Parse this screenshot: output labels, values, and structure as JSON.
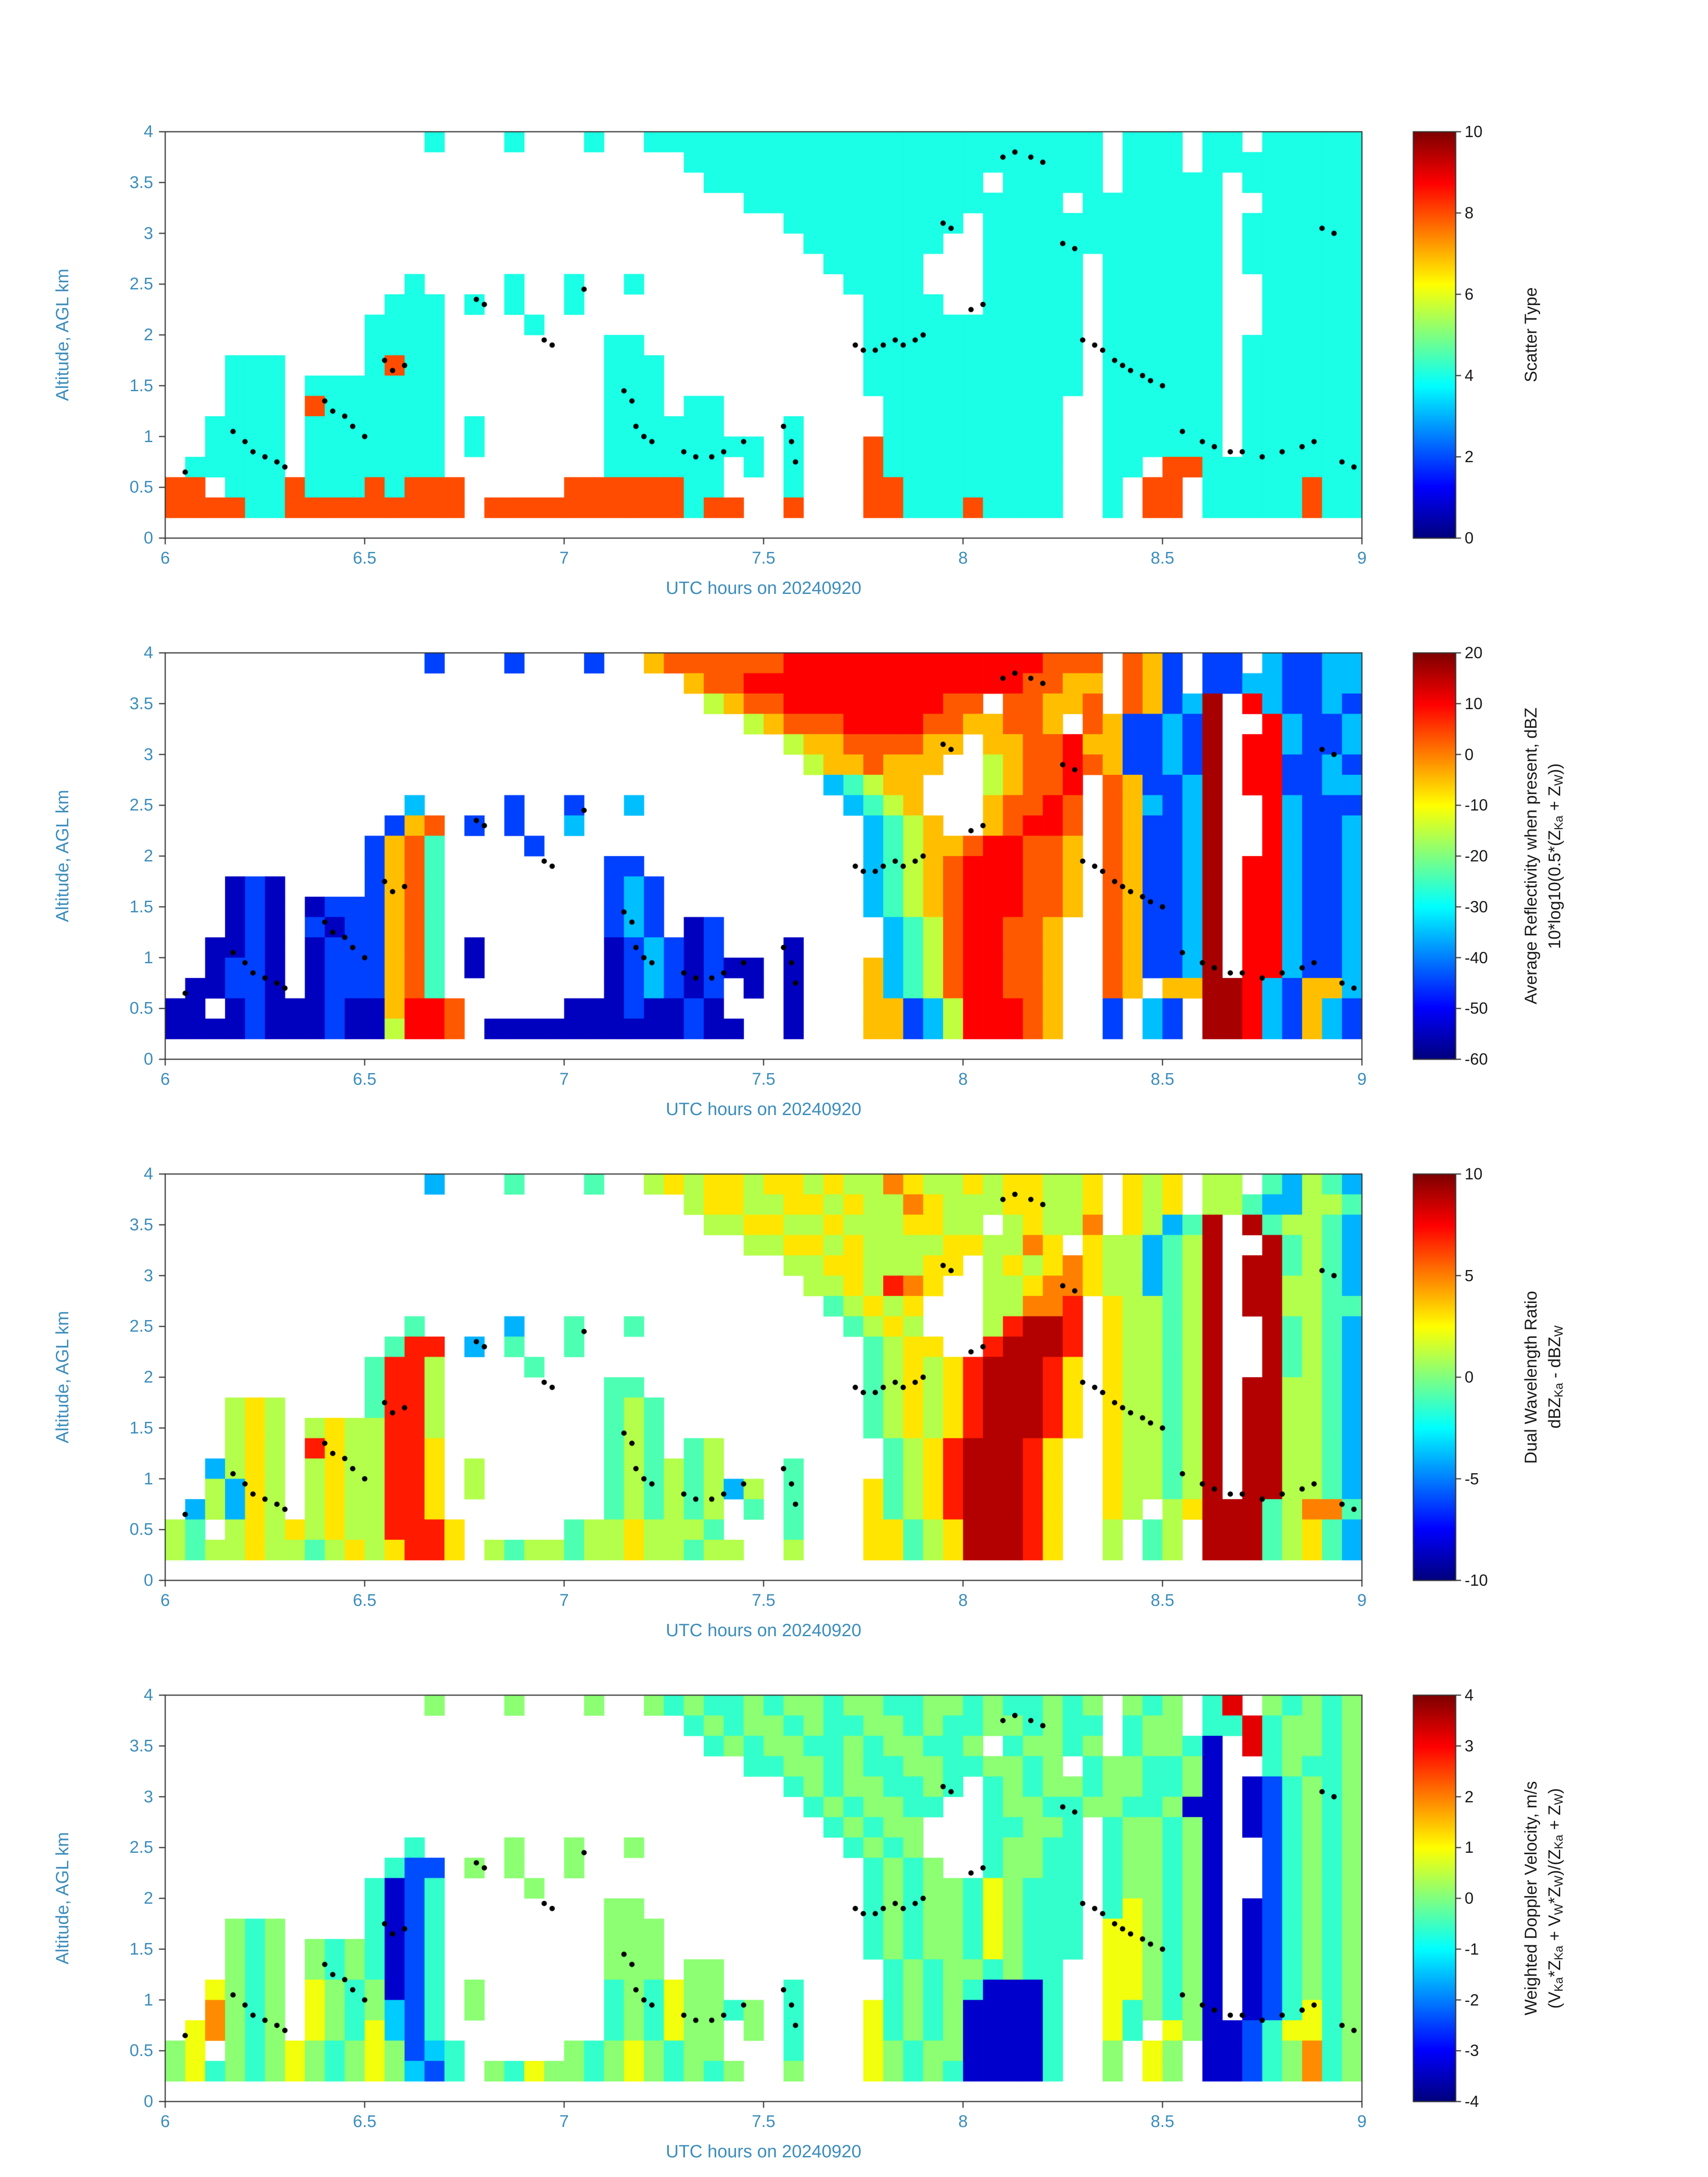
{
  "figure": {
    "background": "#ffffff",
    "axis_text_color": "#3c8dbc",
    "axis_line_color": "#333333",
    "colorbar_text_color": "#1a1a1a",
    "dot_color": "#000000"
  },
  "chart_data": {
    "type": "heatmap",
    "xlabel": "UTC hours on 20240920",
    "ylabel": "Altitude, AGL km",
    "x_range": [
      6,
      9
    ],
    "y_range": [
      0,
      4
    ],
    "x_ticks": {
      "values": [
        6,
        6.5,
        7,
        7.5,
        8,
        8.5,
        9
      ],
      "labels": [
        "6",
        "6.5",
        "7",
        "7.5",
        "8",
        "8.5",
        "9"
      ]
    },
    "y_ticks": {
      "values": [
        0,
        0.5,
        1,
        1.5,
        2,
        2.5,
        3,
        3.5,
        4
      ],
      "labels": [
        "0",
        "0.5",
        "1",
        "1.5",
        "2",
        "2.5",
        "3",
        "3.5",
        "4"
      ]
    },
    "grid": {
      "cols": 60,
      "rows": 20
    },
    "track_dots": [
      [
        6.05,
        0.65
      ],
      [
        6.17,
        1.05
      ],
      [
        6.2,
        0.95
      ],
      [
        6.22,
        0.85
      ],
      [
        6.25,
        0.8
      ],
      [
        6.28,
        0.75
      ],
      [
        6.3,
        0.7
      ],
      [
        6.4,
        1.35
      ],
      [
        6.42,
        1.25
      ],
      [
        6.45,
        1.2
      ],
      [
        6.47,
        1.1
      ],
      [
        6.5,
        1.0
      ],
      [
        6.55,
        1.75
      ],
      [
        6.57,
        1.65
      ],
      [
        6.6,
        1.7
      ],
      [
        6.78,
        2.35
      ],
      [
        6.8,
        2.3
      ],
      [
        6.95,
        1.95
      ],
      [
        6.97,
        1.9
      ],
      [
        7.05,
        2.45
      ],
      [
        7.15,
        1.45
      ],
      [
        7.17,
        1.35
      ],
      [
        7.18,
        1.1
      ],
      [
        7.2,
        1.0
      ],
      [
        7.22,
        0.95
      ],
      [
        7.3,
        0.85
      ],
      [
        7.33,
        0.8
      ],
      [
        7.37,
        0.8
      ],
      [
        7.4,
        0.85
      ],
      [
        7.45,
        0.95
      ],
      [
        7.55,
        1.1
      ],
      [
        7.57,
        0.95
      ],
      [
        7.58,
        0.75
      ],
      [
        7.73,
        1.9
      ],
      [
        7.75,
        1.85
      ],
      [
        7.78,
        1.85
      ],
      [
        7.8,
        1.9
      ],
      [
        7.83,
        1.95
      ],
      [
        7.85,
        1.9
      ],
      [
        7.88,
        1.95
      ],
      [
        7.9,
        2.0
      ],
      [
        7.95,
        3.1
      ],
      [
        7.97,
        3.05
      ],
      [
        8.02,
        2.25
      ],
      [
        8.05,
        2.3
      ],
      [
        8.1,
        3.75
      ],
      [
        8.13,
        3.8
      ],
      [
        8.17,
        3.75
      ],
      [
        8.2,
        3.7
      ],
      [
        8.25,
        2.9
      ],
      [
        8.28,
        2.85
      ],
      [
        8.3,
        1.95
      ],
      [
        8.33,
        1.9
      ],
      [
        8.35,
        1.85
      ],
      [
        8.38,
        1.75
      ],
      [
        8.4,
        1.7
      ],
      [
        8.42,
        1.65
      ],
      [
        8.45,
        1.6
      ],
      [
        8.47,
        1.55
      ],
      [
        8.5,
        1.5
      ],
      [
        8.55,
        1.05
      ],
      [
        8.6,
        0.95
      ],
      [
        8.63,
        0.9
      ],
      [
        8.67,
        0.85
      ],
      [
        8.7,
        0.85
      ],
      [
        8.75,
        0.8
      ],
      [
        8.8,
        0.85
      ],
      [
        8.85,
        0.9
      ],
      [
        8.88,
        0.95
      ],
      [
        8.9,
        3.05
      ],
      [
        8.93,
        3.0
      ],
      [
        8.95,
        0.75
      ],
      [
        8.98,
        0.7
      ]
    ],
    "panels": [
      {
        "name": "scatter-type",
        "colorbar": {
          "min": 0,
          "max": 10,
          "tick_values": [
            0,
            2,
            4,
            6,
            8,
            10
          ],
          "tick_labels": [
            "0",
            "2",
            "4",
            "6",
            "8",
            "10"
          ],
          "label_lines": [
            "Scatter Type"
          ]
        },
        "palette": {
          "c": 4,
          "r": 8
        },
        "rows": [
          ".............c...c...c..ccccccccccccccccccccccc.ccc.cc.ccccc",
          "..........................ccccccccccccccccccccc.ccc.cccccccc",
          "...........................cccccccccccccc.ccccc.ccccc.cccccc",
          ".............................cccccccccccccccc.ccccccc..ccccc",
          "...............................ccccccccc.cccccccccccc.cccccc",
          "................................ccccccc..cccccccccccc.cccccc",
          ".................................ccccc...ccccc.cccccc.cccccc",
          "............c....c..c..c..........cccc...ccccc.cccccc..ccccc",
          "...........ccc.c.c..c..............cccc..ccccc.cccccc..ccccc",
          "..........cccc....c................ccccccccccc.cccccc..ccccc",
          "..........cccc........cc...........ccccccccccc.cccccc.cccccc",
          "...ccc....crcc........ccc..........ccccccccccc.cccccc.cccccc",
          "...ccc.ccccccc........ccc..........ccccccccccc.cccccc.cccccc",
          "...ccc.rcccccc........ccc.cc........ccccccccc..cccccc.cccccc",
          "..cccc.ccccccc.c......cccccc...c....ccccccccc..cccccc.cccccc",
          "..cccc.ccccccc.c......cccccccc.c...rccccccccc..cccccc.cccccc",
          ".ccccc.ccccccc........cccccc.c.c...rccccccccc..cc.rrcccccccc",
          "rr.cccrcccrcrrr.....rrrrrrcc...c...rrcccccccc..c.rr.cccccrcc",
          "rrrrccrrrrrrrrr.rrrrrrrrrrcrr..r...rrcccrcccc..c.rr.cccccrcc",
          "............................................................"
        ]
      },
      {
        "name": "average-reflectivity",
        "colorbar": {
          "min": -60,
          "max": 20,
          "tick_values": [
            -60,
            -50,
            -40,
            -30,
            -20,
            -10,
            0,
            10,
            20
          ],
          "tick_labels": [
            "-60",
            "-50",
            "-40",
            "-30",
            "-20",
            "-10",
            "0",
            "10",
            "20"
          ],
          "label_lines": [
            "Average Reflectivity when present, dBZ",
            "10*log10(0.5*(Z_{Ka} + Z_{W}))"
          ]
        },
        "palette": {
          "a": -55,
          "b": -45,
          "c": -35,
          "d": -25,
          "e": -15,
          "f": -5,
          "g": 3,
          "h": 10,
          "i": 17
        },
        "rows": [
          ".............b...b...b..fgggggghhhhhhhhhhhhhggg.gfb.bb.cbbcc",
          "..........................fgghhhhhhhhhhhhhhggff.gfb.bbccbbcc",
          "...........................efgghhhhhhhhgg.ggffg.gfbci.hcbbcb",
          ".............................efggghhhhggffggf.gfbbcbi..hcbbc",
          "...............................effggggff.ffgghffbbcbi.hhcbbc",
          "................................effgfff..efgghgfbbcbi.hhbbcb",
          ".................................cdeff...efggh.gfbbci.hhbbcc",
          "............c....b..b..c..........cdef...fgghg.gfcbci..hcbbb",
          "...........bfg.b.b..c..............cdef..fghhg.gfbbci..hcbbc",
          "..........bfgd....b................cdeffghhggf.gfbbci..hcbbc",
          "..........bfgd........bb...........cdefghhhggf.gfbbci.hhcbbc",
          "...aba....bfgd........bcb..........cdefghhhggf.gfbbci.hhcbbc",
          "...aba.abbbfgd........bcb..........cdefghhhggf.gfbbci.hhcbbc",
          "...aba.babbfgd........bcb.ab........cdeghhggf..gfbbci.hhcbbc",
          "..aaba.abbbfgd.a......abcbab...a....cdeghhggf..gfbbci.hhcbbc",
          "..abba.abbbfgd.a......abcbabaa.a...fcdeghhggf..gfbbci.hhcbbc",
          ".aabba.abbbfgd........abcbab.a.a...fcdeghhggf..gf.ffiihcbffc",
          "aa.abaaabaafhhg.....aaabaaba...a...ffbcehhhgf..b.cb.iihcbfcb",
          "aaaabaaabaaehhg.aaaaaaaaaabaa..a...ffbcehhhgf..b.cb.iihcbfcb",
          "............................................................"
        ]
      },
      {
        "name": "dual-wavelength-ratio",
        "colorbar": {
          "min": -10,
          "max": 10,
          "tick_values": [
            -10,
            -5,
            0,
            5,
            10
          ],
          "tick_labels": [
            "-10",
            "-5",
            "0",
            "5",
            "10"
          ],
          "label_lines": [
            "Dual Wavelength Ratio",
            "dBZ_{Ka} - dBZ_{W}"
          ]
        },
        "palette": {
          "a": -8,
          "b": -4,
          "c": -1,
          "d": 1,
          "e": 3,
          "f": 5,
          "g": 7,
          "h": 9
        },
        "rows": [
          ".............b...c...c..dedeedeededdfeddedeedde.ede.dd.cbdcb",
          "..........................deeddeededdfedddeedde.ede.ddcbbddc",
          "...........................ddeeddedddeedd.deddf.edbch.hcddcb",
          ".............................ddeededdddeeddfe.eddbcdh..hcdcb",
          "...............................ddeedddee.dedefeddbcdh.hhcdcb",
          "................................ddedgfe..ddeffeddbcdh.hhddcb",
          ".................................cdede...ddffg.eddcdh.hhddcc",
          "............c....b..c..c..........cded...dghhg.eddcdh..hcdcb",
          "...........cgg.b.c..c..............cdee..ghhhg.eddcdh..hcdcb",
          "..........cggd....c................cdedeghhhge.eddcdh..hcdcb",
          "..........cggd........cc...........cdedeghhhge.eddcdh.hhddcb",
          "...ded....cggd........cdc..........cdedeghhhge.eddcdh.hhddcb",
          "...ded.deddggd........cdc..........cdedeghhhge.eddcdh.hhddcb",
          "...ded.geddgge........cdc.cd........cdeghhhge..eddcdh.hhddcb",
          "..bded.deddgge.d......cdcdcd...c....cdeghhhge..eddcdh.hhddcb",
          "..dbed.deddgge.d......cdcdcdbd.c...ecdeghhhge..eddcdh.hhddcb",
          ".bdbed.deddgge........cdcdcd.c.c...ecdeghhhge..ed.dehhhcdffc",
          "dc.dedededdggge.....cddedddc...c...eecdehhhge..d.cd.hhhcdecb",
          "dcddeddcdedegge.dcddcddeddcdd..d...eecdehhhge..d.cd.hhhcdecb",
          "............................................................"
        ]
      },
      {
        "name": "weighted-doppler-velocity",
        "colorbar": {
          "min": -4,
          "max": 4,
          "tick_values": [
            -4,
            -3,
            -2,
            -1,
            0,
            1,
            2,
            3,
            4
          ],
          "tick_labels": [
            "-4",
            "-3",
            "-2",
            "-1",
            "0",
            "1",
            "2",
            "3",
            "4"
          ],
          "label_lines": [
            "Weighted Doppler Velocity, m/s",
            "(V_{Ka}*Z_{Ka} + V_{W}*Z_{W})/(Z_{Ka} + Z_{W})"
          ]
        },
        "palette": {
          "a": -3.4,
          "b": -2.4,
          "c": -1.4,
          "d": -0.6,
          "e": 0.1,
          "f": 0.9,
          "g": 1.9,
          "h": 3.2
        },
        "rows": [
          ".............e...e...e..ededdedeedeeddeededdede.ede.dh.edede",
          "..........................dedeededdeededdeededd.dee.ddhdeede",
          "...........................dedeeddedeedde.deede.deeda.hdeede",
          ".............................ddeededdeeddeede.deeddea..dedde",
          "...............................dedeedded.dedeedeeddea.abdede",
          "................................dedeedd..deeddeeddeaa.abdede",
          ".................................dedee...ddeed.deedea.abdede",
          "............d....e..e..e..........dede...deedd.deedea..bdede",
          "...........dbb.e.e..e..............dede..deedd.deedea..bdede",
          "..........dabd....e................dedeedfeddd.deedea..bdede",
          "..........dabd........ee...........dedeedfeddd.dfedea.abdede",
          "...ede....dabd........eee..........dedeedfeddd.ffedea.abdede",
          "...ede.ededabd........eee..........dedeedfeddd.ffedea.abdede",
          "...ede.ededabd........eee.ee........dedeededd..ffedea.abdede",
          "..fede.fedeabd.e......dedfee...d....dededaaad..ffedea.abdede",
          "..gede.fedecbd.e......dedfeede.d...fdedeaaaad..fdedea.abdfde",
          ".fgede.fedfcbd........dedfee.e.d...fdedeaaaad..fd.feaabdffde",
          "ef.edefedefebcd.....edefedee...d...fedeeaaaad..e.fe.aabdegde",
          "efdedefedefecbd.edfeedefedede..e...fededaaaad..e.fe.aabdegde",
          "............................................................"
        ]
      }
    ]
  }
}
